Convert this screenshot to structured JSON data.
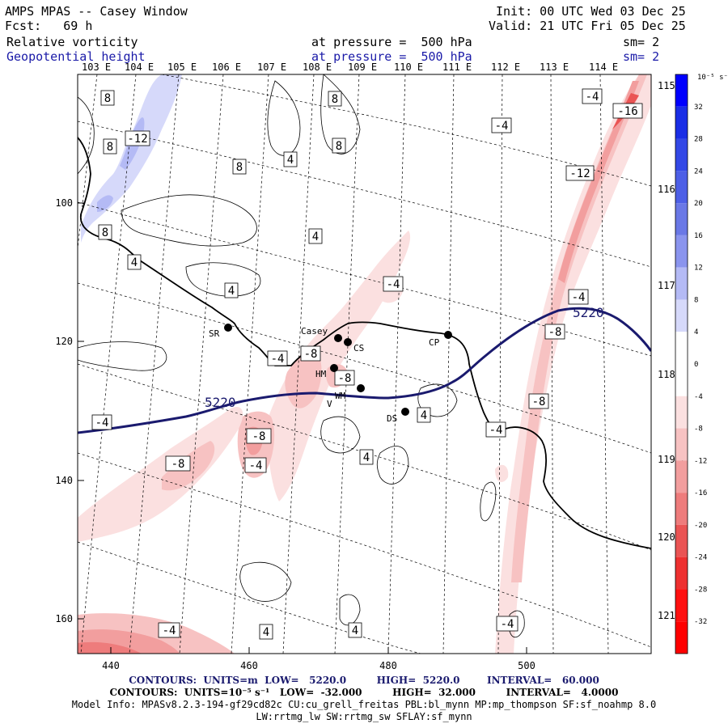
{
  "header": {
    "title": "AMPS MPAS -- Casey Window",
    "forecast": "Fcst:   69 h",
    "init": "Init: 00 UTC Wed 03 Dec 25",
    "valid": "Valid: 21 UTC Fri 05 Dec 25",
    "field1": {
      "name": "Relative vorticity",
      "level": "at pressure =  500 hPa",
      "sm": "sm= 2"
    },
    "field2": {
      "name": "Geopotential height",
      "level": "at pressure =  500 hPa",
      "sm": "sm= 2"
    }
  },
  "axes": {
    "lon_labels": [
      "103 E",
      "104 E",
      "105 E",
      "106 E",
      "107 E",
      "108 E",
      "109 E",
      "110 E",
      "111 E",
      "112 E",
      "113 E",
      "114 E"
    ],
    "lat_labels": [
      "115 E",
      "116 E",
      "117 E",
      "118 E",
      "119 E",
      "120 E",
      "121 E"
    ],
    "x_ticks": [
      "440",
      "460",
      "480",
      "500"
    ],
    "y_ticks": [
      "100",
      "120",
      "140",
      "160"
    ]
  },
  "colorbar": {
    "unit": "10⁻⁵ s⁻¹",
    "labels": [
      "32",
      "28",
      "24",
      "20",
      "16",
      "12",
      "8",
      "4",
      "0",
      "-4",
      "-8",
      "-12",
      "-16",
      "-20",
      "-24",
      "-28",
      "-32"
    ],
    "colors": [
      "#0000ff",
      "#1a2ee6",
      "#3348e6",
      "#4d5fe6",
      "#6a78e6",
      "#8a94ee",
      "#b4baf5",
      "#d6d9fa",
      "#ffffff",
      "#ffffff",
      "#fbe0e0",
      "#f7c2c2",
      "#f29e9e",
      "#ee7c7c",
      "#ea5454",
      "#ee3030",
      "#ff1010",
      "#ff0000"
    ]
  },
  "map": {
    "stations": [
      {
        "label": "SR"
      },
      {
        "label": "Casey"
      },
      {
        "label": "CS"
      },
      {
        "label": "CP"
      },
      {
        "label": "HM"
      },
      {
        "label": "V"
      },
      {
        "label": "WM"
      },
      {
        "label": "DS"
      }
    ],
    "height_labels": [
      "5220",
      "5220"
    ],
    "vort_labels": [
      "8",
      "8",
      "-12",
      "8",
      "8",
      "4",
      "-4",
      "8",
      "8",
      "4",
      "-16",
      "-4",
      "-12",
      "4",
      "4",
      "-4",
      "-4",
      "-8",
      "-8",
      "-8",
      "-4",
      "-8",
      "-4",
      "-8",
      "-4",
      "4",
      "4",
      "-8",
      "-4",
      "-4",
      "4",
      "4",
      "-4"
    ]
  },
  "footer": {
    "line1": "CONTOURS:  UNITS=m  LOW=   5220.0         HIGH=  5220.0        INTERVAL=   60.000",
    "line2": "CONTOURS:  UNITS=10⁻⁵ s⁻¹   LOW=  -32.000         HIGH=  32.000         INTERVAL=   4.0000",
    "line3": "Model Info: MPASv8.2.3-194-gf29cd82c CU:cu_grell_freitas PBL:bl_mynn MP:mp_thompson SF:sf_noahmp 8.0",
    "line4": "LW:rrtmg_lw SW:rrtmg_sw SFLAY:sf_mynn"
  }
}
